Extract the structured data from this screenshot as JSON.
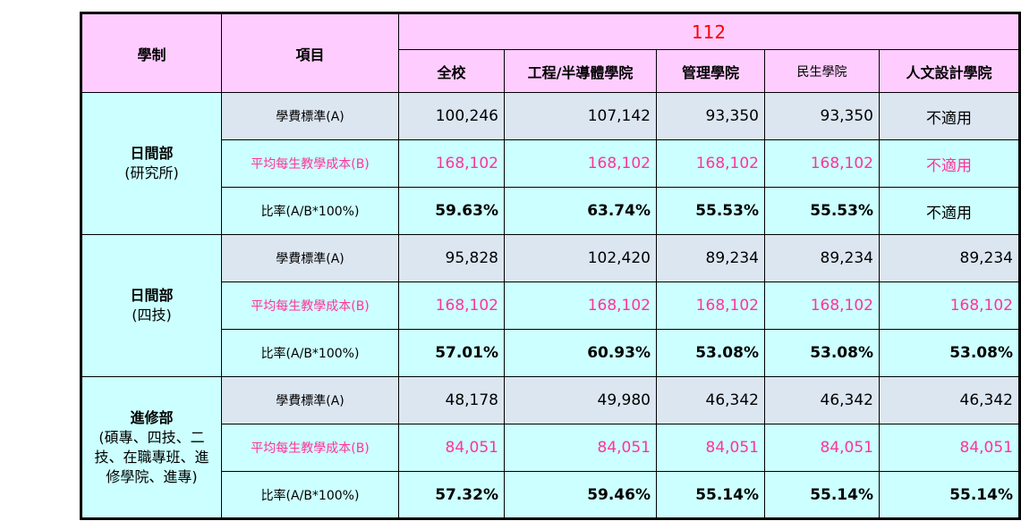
{
  "header": {
    "system_label": "學制",
    "item_label": "項目",
    "year": "112",
    "columns": [
      "全校",
      "工程/半導體學院",
      "管理學院",
      "民生學院",
      "人文設計學院"
    ]
  },
  "groups": [
    {
      "name": "日間部",
      "sub": "(研究所)",
      "rows": [
        {
          "label": "學費標準(A)",
          "values": [
            "100,246",
            "107,142",
            "93,350",
            "93,350",
            "不適用"
          ]
        },
        {
          "label": "平均每生教學成本(B)",
          "values": [
            "168,102",
            "168,102",
            "168,102",
            "168,102",
            "不適用"
          ]
        },
        {
          "label": "比率(A/B*100%)",
          "values": [
            "59.63%",
            "63.74%",
            "55.53%",
            "55.53%",
            "不適用"
          ]
        }
      ]
    },
    {
      "name": "日間部",
      "sub": "(四技)",
      "rows": [
        {
          "label": "學費標準(A)",
          "values": [
            "95,828",
            "102,420",
            "89,234",
            "89,234",
            "89,234"
          ]
        },
        {
          "label": "平均每生教學成本(B)",
          "values": [
            "168,102",
            "168,102",
            "168,102",
            "168,102",
            "168,102"
          ]
        },
        {
          "label": "比率(A/B*100%)",
          "values": [
            "57.01%",
            "60.93%",
            "53.08%",
            "53.08%",
            "53.08%"
          ]
        }
      ]
    },
    {
      "name": "進修部",
      "sub_lines": [
        "(碩專、四技、二",
        "技、在職專班、進",
        "修學院、進專)"
      ],
      "rows": [
        {
          "label": "學費標準(A)",
          "values": [
            "48,178",
            "49,980",
            "46,342",
            "46,342",
            "46,342"
          ]
        },
        {
          "label": "平均每生教學成本(B)",
          "values": [
            "84,051",
            "84,051",
            "84,051",
            "84,051",
            "84,051"
          ]
        },
        {
          "label": "比率(A/B*100%)",
          "values": [
            "57.32%",
            "59.46%",
            "55.14%",
            "55.14%",
            "55.14%"
          ]
        }
      ]
    }
  ],
  "colors": {
    "header_bg": "#ffccff",
    "group_bg": "#ccffff",
    "fee_row_bg": "#dce6f1",
    "cost_text": "#ff3399",
    "year_text": "#ff0000"
  }
}
